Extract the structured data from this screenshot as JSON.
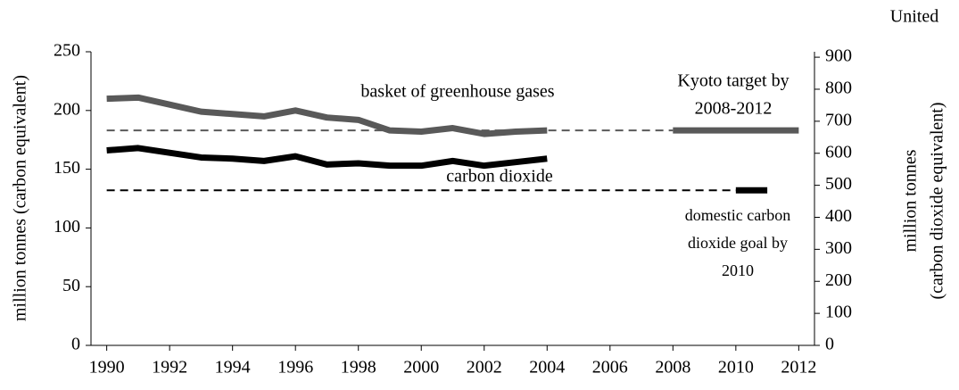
{
  "chart_data": {
    "type": "line",
    "title": "United",
    "y_label": "million tonnes (carbon equivalent)",
    "y2_label": [
      "million tonnes",
      "(carbon dioxide equivalent)"
    ],
    "x": [
      1990,
      1991,
      1992,
      1993,
      1994,
      1995,
      1996,
      1997,
      1998,
      1999,
      2000,
      2001,
      2002,
      2003,
      2004
    ],
    "series": [
      {
        "name": "basket of greenhouse gases",
        "color": "#595959",
        "values": [
          210,
          211,
          205,
          199,
          197,
          195,
          200,
          194,
          192,
          183,
          182,
          185,
          180,
          182,
          183
        ]
      },
      {
        "name": "carbon dioxide",
        "color": "#000000",
        "values": [
          166,
          168,
          164,
          160,
          159,
          157,
          161,
          154,
          155,
          153,
          153,
          157,
          153,
          156,
          159
        ]
      }
    ],
    "targets": [
      {
        "label": [
          "Kyoto target by",
          "2008-2012"
        ],
        "value": 183,
        "color": "#595959",
        "from": 1990,
        "start": 2008,
        "end": 2012
      },
      {
        "label": [
          "domestic carbon",
          "dioxide goal by",
          "2010"
        ],
        "value": 132,
        "color": "#000000",
        "from": 1990,
        "start": 2010,
        "end": 2011
      }
    ],
    "xlim": [
      1989.5,
      2012.5
    ],
    "xticks": [
      1990,
      1992,
      1994,
      1996,
      1998,
      2000,
      2002,
      2004,
      2006,
      2008,
      2010,
      2012
    ],
    "ylim": [
      0,
      250
    ],
    "yticks": [
      0,
      50,
      100,
      150,
      200,
      250
    ],
    "y2lim": [
      0,
      917
    ],
    "y2ticks": [
      0,
      100,
      200,
      300,
      400,
      500,
      600,
      700,
      800,
      900
    ]
  }
}
